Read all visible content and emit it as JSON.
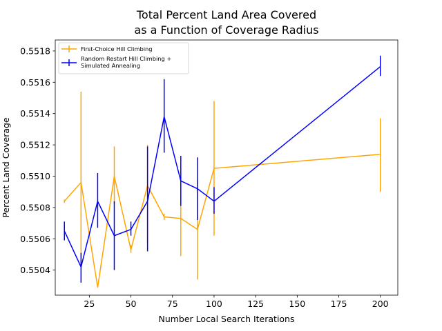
{
  "chart_data": {
    "type": "line",
    "title_lines": [
      "Total Percent Land Area Covered",
      "as a Function of Coverage Radius"
    ],
    "xlabel": "Number Local Search Iterations",
    "ylabel": "Percent Land Coverage",
    "xlim": [
      4.5,
      210.5
    ],
    "ylim": [
      0.55024,
      0.55187
    ],
    "xticks": [
      25,
      50,
      75,
      100,
      125,
      150,
      175,
      200
    ],
    "yticks": [
      0.5504,
      0.5506,
      0.5508,
      0.551,
      0.5512,
      0.5514,
      0.5516,
      0.5518
    ],
    "grid": false,
    "legend_position": "upper-left",
    "series": [
      {
        "name": "First-Choice Hill Climbing",
        "color": "#FFA500",
        "x": [
          10,
          20,
          30,
          40,
          50,
          60,
          70,
          80,
          90,
          100,
          200
        ],
        "y": [
          0.55084,
          0.55096,
          0.55029,
          0.551,
          0.55053,
          0.55094,
          0.55074,
          0.55073,
          0.55066,
          0.55105,
          0.55114
        ],
        "err_low": [
          0.55083,
          0.55043,
          0.55029,
          0.55082,
          0.55051,
          0.55058,
          0.55072,
          0.55049,
          0.55034,
          0.55062,
          0.5509
        ],
        "err_high": [
          0.55085,
          0.55154,
          0.55029,
          0.55119,
          0.55056,
          0.5512,
          0.55076,
          0.55098,
          0.55098,
          0.55148,
          0.55137
        ]
      },
      {
        "name": "Random Restart Hill Climbing +\nSimulated Annealing",
        "color": "#0000FF",
        "x": [
          10,
          20,
          30,
          40,
          50,
          60,
          70,
          80,
          90,
          100,
          200
        ],
        "y": [
          0.55065,
          0.55042,
          0.55084,
          0.55062,
          0.55066,
          0.55084,
          0.55138,
          0.55097,
          0.55092,
          0.55084,
          0.5517
        ],
        "err_low": [
          0.55059,
          0.55032,
          0.55067,
          0.5504,
          0.55062,
          0.55052,
          0.55115,
          0.55081,
          0.55072,
          0.55076,
          0.55164
        ],
        "err_high": [
          0.55071,
          0.55051,
          0.55102,
          0.55084,
          0.55071,
          0.55119,
          0.55162,
          0.55113,
          0.55112,
          0.55093,
          0.55177
        ]
      }
    ]
  }
}
